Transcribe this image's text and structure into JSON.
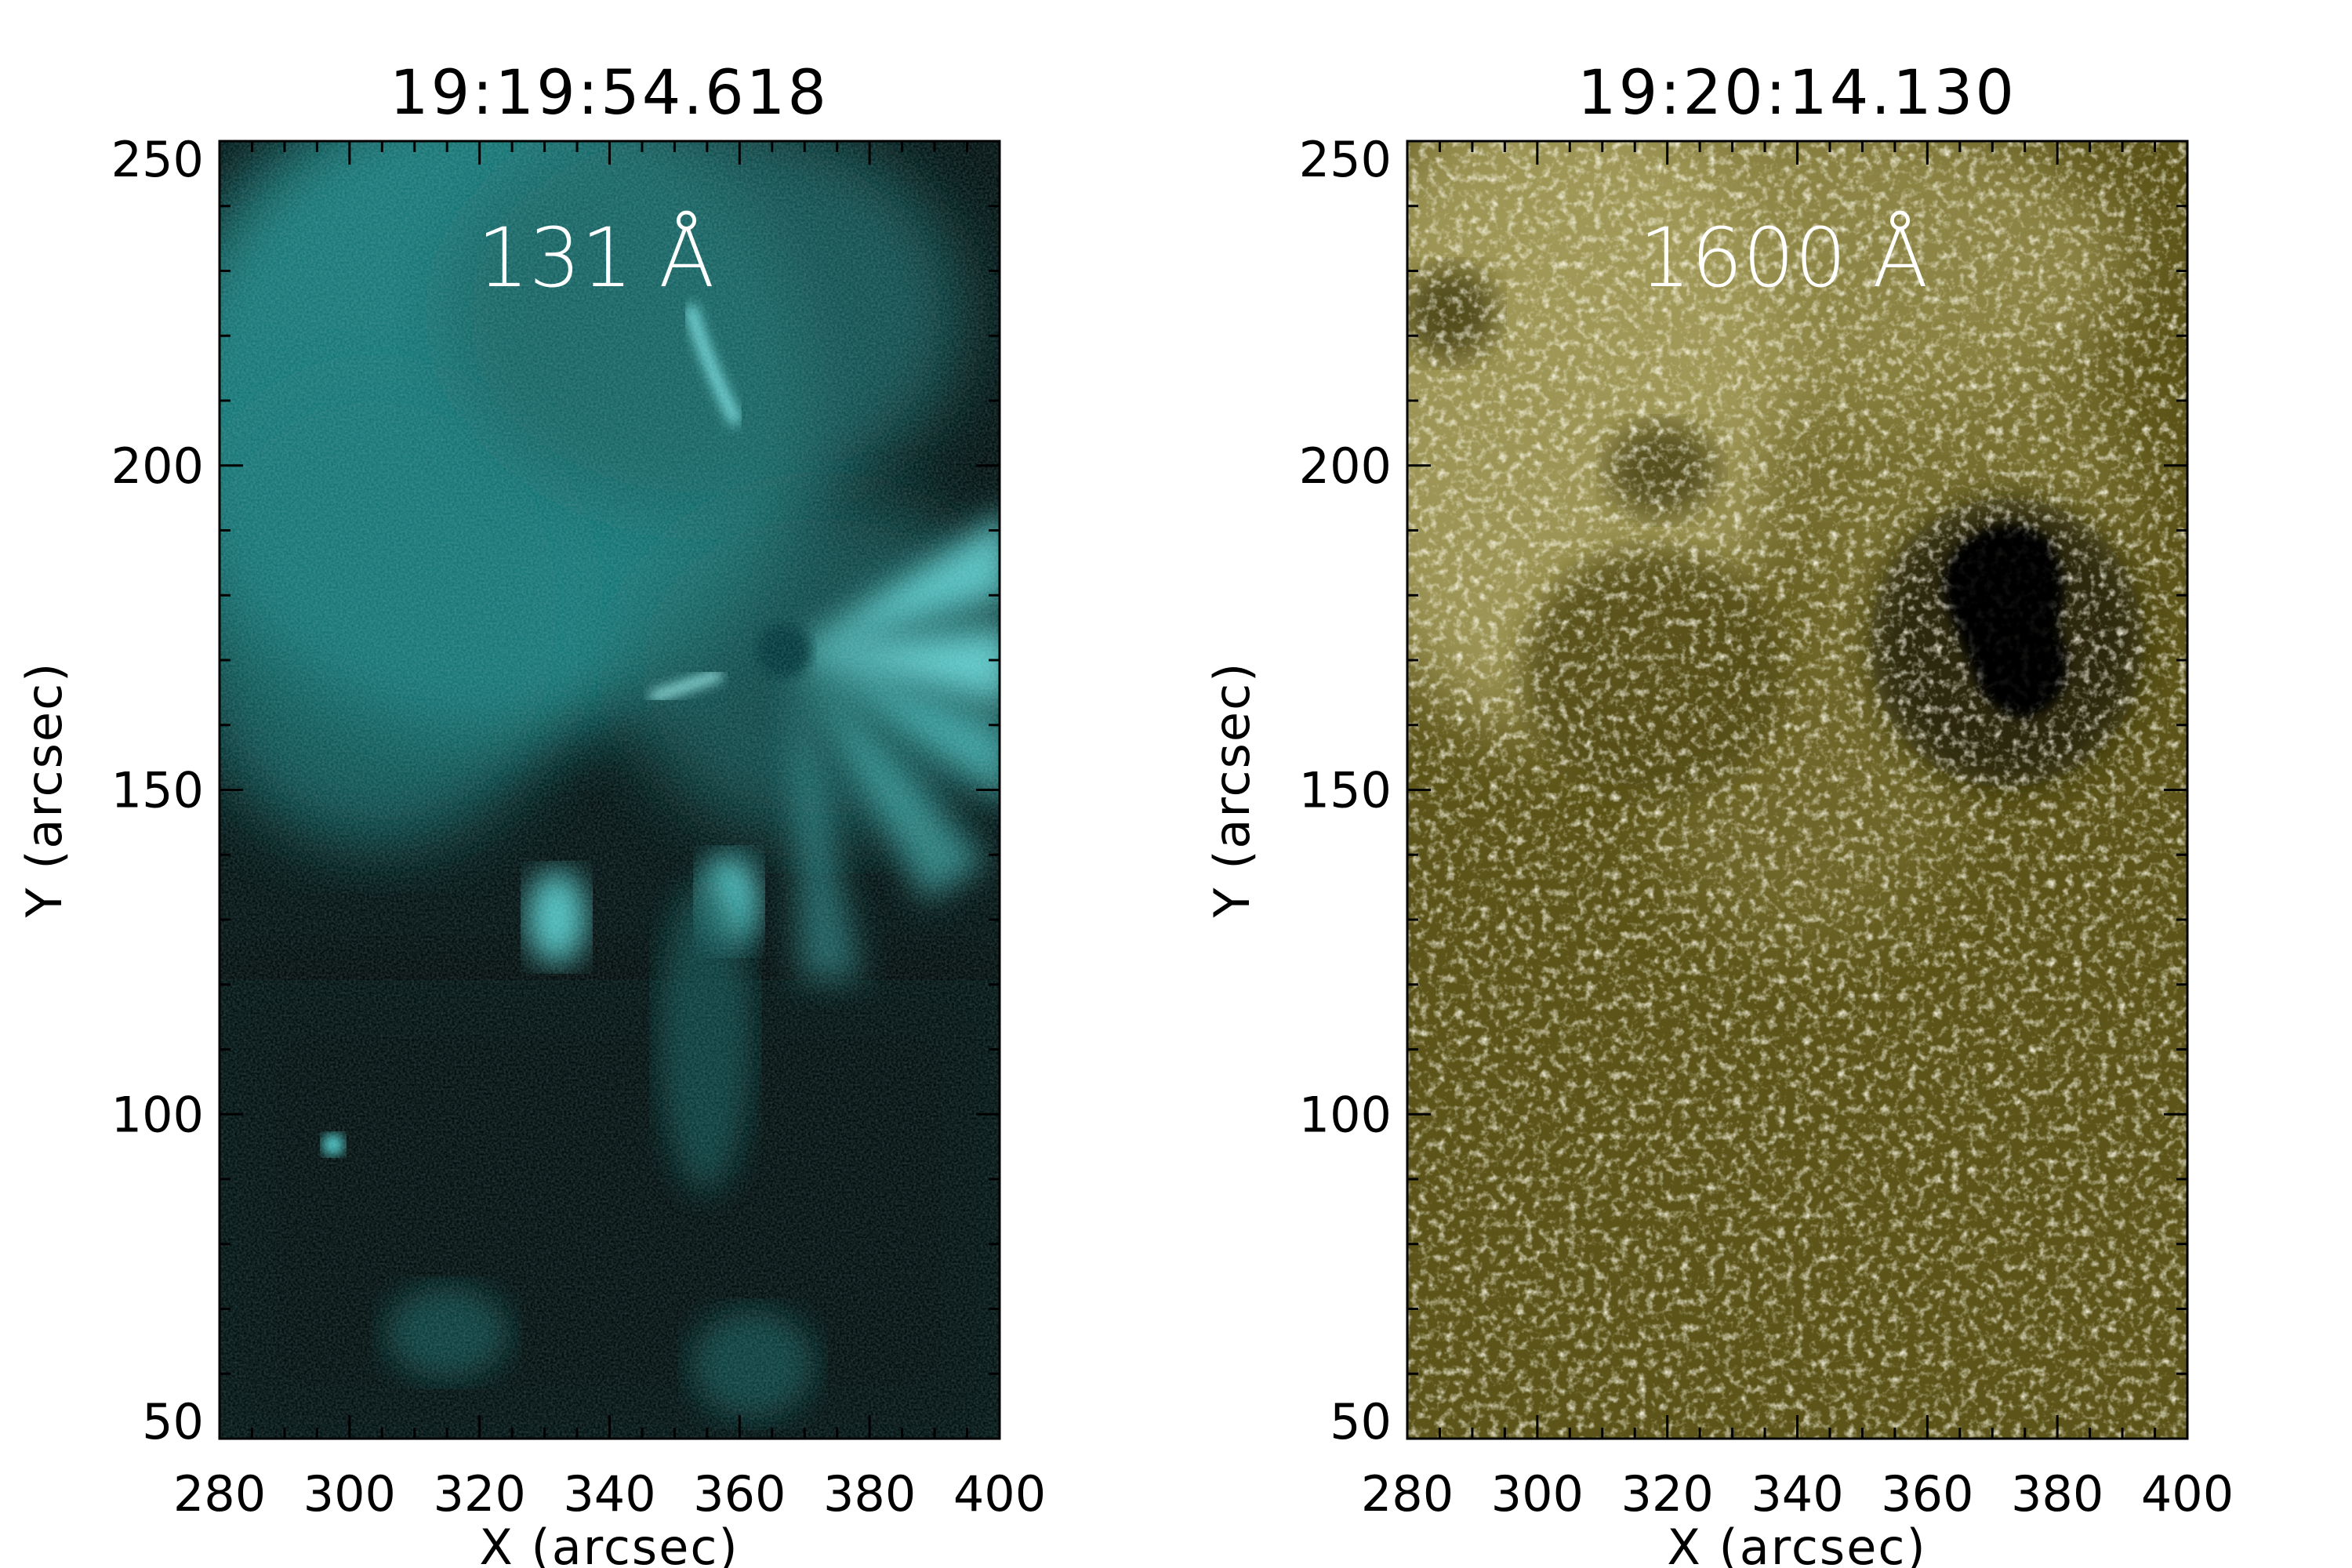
{
  "panels": [
    {
      "title": "19:19:54.618",
      "wavelength_label": "131 Å",
      "colormap": [
        "#000f0f",
        "#0e5a5a",
        "#2aa3a3",
        "#74dede",
        "#d4ffff"
      ],
      "x_axis": {
        "label": "X (arcsec)",
        "range": [
          280,
          400
        ],
        "ticks": [
          "280",
          "300",
          "320",
          "340",
          "360",
          "380",
          "400"
        ]
      },
      "y_axis": {
        "label": "Y (arcsec)",
        "range": [
          50,
          250
        ],
        "ticks": [
          "50",
          "100",
          "150",
          "200",
          "250"
        ]
      }
    },
    {
      "title": "19:20:14.130",
      "wavelength_label": "1600 Å",
      "colormap": [
        "#141000",
        "#534a12",
        "#857b3a",
        "#c4bd86",
        "#fffbe6"
      ],
      "x_axis": {
        "label": "X (arcsec)",
        "range": [
          280,
          400
        ],
        "ticks": [
          "280",
          "300",
          "320",
          "340",
          "360",
          "380",
          "400"
        ]
      },
      "y_axis": {
        "label": "Y (arcsec)",
        "range": [
          50,
          250
        ],
        "ticks": [
          "50",
          "100",
          "150",
          "200",
          "250"
        ]
      }
    }
  ]
}
